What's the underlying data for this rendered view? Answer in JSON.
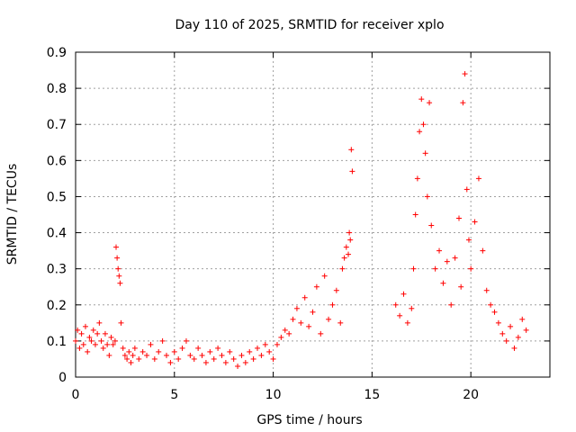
{
  "chart_data": {
    "type": "scatter",
    "title": "Day 110 of 2025, SRMTID for receiver xplo",
    "xlabel": "GPS time / hours",
    "ylabel": "SRMTID / TECUs",
    "xlim": [
      0,
      24
    ],
    "ylim": [
      0,
      0.9
    ],
    "x_ticks": [
      0,
      5,
      10,
      15,
      20
    ],
    "x_tick_labels": [
      "0",
      "5",
      "10",
      "15",
      "20"
    ],
    "y_ticks": [
      0,
      0.1,
      0.2,
      0.3,
      0.4,
      0.5,
      0.6,
      0.7,
      0.8,
      0.9
    ],
    "y_tick_labels": [
      "0",
      "0.1",
      "0.2",
      "0.3",
      "0.4",
      "0.5",
      "0.6",
      "0.7",
      "0.8",
      "0.9"
    ],
    "grid": true,
    "marker": "+",
    "series": [
      {
        "name": "SRMTID",
        "color": "#ff0000",
        "x": [
          0.0,
          0.1,
          0.2,
          0.3,
          0.4,
          0.5,
          0.6,
          0.7,
          0.8,
          0.9,
          1.0,
          1.1,
          1.2,
          1.3,
          1.4,
          1.5,
          1.6,
          1.7,
          1.8,
          1.9,
          2.0,
          2.05,
          2.1,
          2.15,
          2.2,
          2.25,
          2.3,
          2.4,
          2.5,
          2.6,
          2.7,
          2.8,
          2.9,
          3.0,
          3.2,
          3.4,
          3.6,
          3.8,
          4.0,
          4.2,
          4.4,
          4.6,
          4.8,
          5.0,
          5.2,
          5.4,
          5.6,
          5.8,
          6.0,
          6.2,
          6.4,
          6.6,
          6.8,
          7.0,
          7.2,
          7.4,
          7.6,
          7.8,
          8.0,
          8.2,
          8.4,
          8.6,
          8.8,
          9.0,
          9.2,
          9.4,
          9.6,
          9.8,
          10.0,
          10.2,
          10.4,
          10.6,
          10.8,
          11.0,
          11.2,
          11.4,
          11.6,
          11.8,
          12.0,
          12.2,
          12.4,
          12.6,
          12.8,
          13.0,
          13.2,
          13.4,
          13.5,
          13.6,
          13.7,
          13.8,
          13.85,
          13.9,
          13.95,
          14.0,
          16.2,
          16.4,
          16.6,
          16.8,
          17.0,
          17.1,
          17.2,
          17.3,
          17.4,
          17.5,
          17.6,
          17.7,
          17.8,
          17.9,
          18.0,
          18.2,
          18.4,
          18.6,
          18.8,
          19.0,
          19.2,
          19.4,
          19.5,
          19.6,
          19.7,
          19.8,
          19.9,
          20.0,
          20.2,
          20.4,
          20.6,
          20.8,
          21.0,
          21.2,
          21.4,
          21.6,
          21.8,
          22.0,
          22.2,
          22.4,
          22.6,
          22.8
        ],
        "y": [
          0.1,
          0.13,
          0.08,
          0.12,
          0.09,
          0.14,
          0.07,
          0.11,
          0.1,
          0.13,
          0.09,
          0.12,
          0.15,
          0.1,
          0.08,
          0.12,
          0.09,
          0.06,
          0.11,
          0.09,
          0.1,
          0.36,
          0.33,
          0.3,
          0.28,
          0.26,
          0.15,
          0.08,
          0.06,
          0.05,
          0.07,
          0.04,
          0.06,
          0.08,
          0.05,
          0.07,
          0.06,
          0.09,
          0.05,
          0.07,
          0.1,
          0.06,
          0.04,
          0.07,
          0.05,
          0.08,
          0.1,
          0.06,
          0.05,
          0.08,
          0.06,
          0.04,
          0.07,
          0.05,
          0.08,
          0.06,
          0.04,
          0.07,
          0.05,
          0.03,
          0.06,
          0.04,
          0.07,
          0.05,
          0.08,
          0.06,
          0.09,
          0.07,
          0.05,
          0.09,
          0.11,
          0.13,
          0.12,
          0.16,
          0.19,
          0.15,
          0.22,
          0.14,
          0.18,
          0.25,
          0.12,
          0.28,
          0.16,
          0.2,
          0.24,
          0.15,
          0.3,
          0.33,
          0.36,
          0.34,
          0.4,
          0.38,
          0.63,
          0.57,
          0.2,
          0.17,
          0.23,
          0.15,
          0.19,
          0.3,
          0.45,
          0.55,
          0.68,
          0.77,
          0.7,
          0.62,
          0.5,
          0.76,
          0.42,
          0.3,
          0.35,
          0.26,
          0.32,
          0.2,
          0.33,
          0.44,
          0.25,
          0.76,
          0.84,
          0.52,
          0.38,
          0.3,
          0.43,
          0.55,
          0.35,
          0.24,
          0.2,
          0.18,
          0.15,
          0.12,
          0.1,
          0.14,
          0.08,
          0.11,
          0.16,
          0.13
        ]
      }
    ]
  }
}
